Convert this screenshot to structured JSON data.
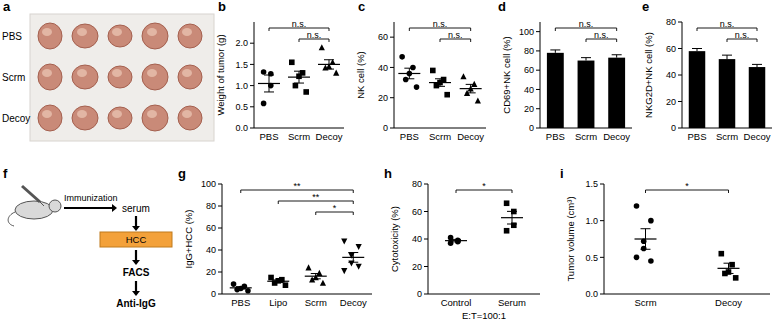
{
  "chart_data": [
    {
      "panel": "a",
      "type": "image",
      "labels": [
        "PBS",
        "Scrm",
        "Decoy"
      ],
      "tumors": [
        5,
        5,
        5
      ]
    },
    {
      "panel": "b",
      "type": "scatter",
      "y_label": "Weight of tumor (g)",
      "color": "#000000",
      "ylim": [
        0,
        2.5
      ],
      "yticks": [
        {
          "value": 0,
          "label": "0.0"
        },
        {
          "value": 0.5,
          "label": "0.5"
        },
        {
          "value": 1,
          "label": "1.0"
        },
        {
          "value": 1.5,
          "label": "1.5"
        },
        {
          "value": 2,
          "label": "2.0"
        }
      ],
      "series": [
        {
          "name": "PBS",
          "marker": "circle",
          "values": [
            1.32,
            1.28,
            1.0,
            0.58
          ],
          "mean": 1.05,
          "error": 0.2
        },
        {
          "name": "Scrm",
          "marker": "square",
          "values": [
            1.55,
            1.3,
            1.22,
            1.0,
            0.85
          ],
          "mean": 1.2,
          "error": 0.14
        },
        {
          "name": "Decoy",
          "marker": "triangle",
          "values": [
            1.9,
            1.55,
            1.45,
            1.42,
            1.3
          ],
          "mean": 1.5,
          "error": 0.11
        }
      ],
      "annotations": [
        {
          "from": 0,
          "to": 2,
          "text": "n.s."
        },
        {
          "from": 1,
          "to": 2,
          "text": "n.s."
        }
      ]
    },
    {
      "panel": "c",
      "type": "scatter",
      "y_label": "NK cell (%)",
      "color": "#000000",
      "ylim": [
        0,
        70
      ],
      "yticks": [
        0,
        20,
        40,
        60
      ],
      "series": [
        {
          "name": "PBS",
          "marker": "circle",
          "values": [
            47,
            40,
            36,
            32,
            27
          ],
          "mean": 36,
          "error": 3.5
        },
        {
          "name": "Scrm",
          "marker": "square",
          "values": [
            38,
            32,
            30,
            28,
            22
          ],
          "mean": 30,
          "error": 2.5
        },
        {
          "name": "Decoy",
          "marker": "triangle",
          "values": [
            34,
            29,
            26,
            23,
            18
          ],
          "mean": 26,
          "error": 2.8
        }
      ],
      "annotations": [
        {
          "from": 0,
          "to": 2,
          "text": "n.s."
        },
        {
          "from": 1,
          "to": 2,
          "text": "n.s."
        }
      ]
    },
    {
      "panel": "d",
      "type": "bar",
      "y_label": "CD69+NK cell (%)",
      "color": "#000000",
      "ylim": [
        0,
        110
      ],
      "yticks": [
        0,
        20,
        40,
        60,
        80,
        100
      ],
      "categories": [
        "PBS",
        "Scrm",
        "Decoy"
      ],
      "values": [
        78,
        70,
        73
      ],
      "error": [
        3,
        3,
        3
      ],
      "annotations": [
        {
          "from": 0,
          "to": 2,
          "text": "n.s."
        },
        {
          "from": 1,
          "to": 2,
          "text": "n.s."
        }
      ]
    },
    {
      "panel": "e",
      "type": "bar",
      "y_label": "NKG2D+NK cell (%)",
      "color": "#000000",
      "ylim": [
        0,
        80
      ],
      "yticks": [
        0,
        20,
        40,
        60,
        80
      ],
      "categories": [
        "PBS",
        "Scrm",
        "Decoy"
      ],
      "values": [
        58,
        52,
        46
      ],
      "error": [
        2,
        3,
        2
      ],
      "annotations": [
        {
          "from": 0,
          "to": 2,
          "text": "n.s."
        },
        {
          "from": 1,
          "to": 2,
          "text": "n.s."
        }
      ]
    },
    {
      "panel": "f",
      "type": "diagram",
      "labels": {
        "step": "Immunization",
        "sample": "serum",
        "cells": "HCC",
        "assay": "FACS",
        "readout": "Anti-IgG"
      }
    },
    {
      "panel": "g",
      "type": "scatter",
      "y_label": "IgG+HCC (%)",
      "color": "#000000",
      "ylim": [
        0,
        100
      ],
      "yticks": [
        0,
        20,
        40,
        60,
        80,
        100
      ],
      "series": [
        {
          "name": "PBS",
          "marker": "circle",
          "values": [
            9,
            7,
            5,
            4,
            3
          ],
          "mean": 5.6,
          "error": 1.1
        },
        {
          "name": "Lipo",
          "marker": "square",
          "values": [
            15,
            13,
            12,
            10,
            8
          ],
          "mean": 11.6,
          "error": 1.2
        },
        {
          "name": "Scrm",
          "marker": "triangle",
          "values": [
            24,
            19,
            15,
            13,
            10
          ],
          "mean": 16.2,
          "error": 2.4
        },
        {
          "name": "Decoy",
          "marker": "triangle-down",
          "values": [
            48,
            43,
            35,
            28,
            25,
            21
          ],
          "mean": 33.3,
          "error": 4.4
        }
      ],
      "annotations": [
        {
          "from": 0,
          "to": 3,
          "text": "**"
        },
        {
          "from": 1,
          "to": 3,
          "text": "**"
        },
        {
          "from": 2,
          "to": 3,
          "text": "*"
        }
      ]
    },
    {
      "panel": "h",
      "type": "scatter",
      "y_label": "Cytotoxicity (%)",
      "x_label": "E:T=100:1",
      "color": "#000000",
      "ylim": [
        0,
        80
      ],
      "yticks": [
        0,
        20,
        40,
        60,
        80
      ],
      "series": [
        {
          "name": "Control",
          "marker": "circle",
          "values": [
            41,
            39,
            38,
            37
          ],
          "mean": 38.8,
          "error": 0.9
        },
        {
          "name": "Serum",
          "marker": "square",
          "values": [
            66,
            60,
            50,
            46
          ],
          "mean": 55.5,
          "error": 4.6
        }
      ],
      "annotations": [
        {
          "from": 0,
          "to": 1,
          "text": "*"
        }
      ]
    },
    {
      "panel": "i",
      "type": "scatter",
      "y_label": "Tumor volume (cm³)",
      "color": "#000000",
      "ylim": [
        0,
        1.5
      ],
      "yticks": [
        {
          "value": 0,
          "label": "0.0"
        },
        {
          "value": 0.5,
          "label": "0.5"
        },
        {
          "value": 1,
          "label": "1.0"
        },
        {
          "value": 1.5,
          "label": "1.5"
        }
      ],
      "series": [
        {
          "name": "Scrm",
          "marker": "circle",
          "values": [
            1.2,
            1.0,
            0.72,
            0.62,
            0.45,
            0.5
          ],
          "mean": 0.75,
          "error": 0.14
        },
        {
          "name": "Decoy",
          "marker": "square",
          "values": [
            0.55,
            0.4,
            0.3,
            0.28,
            0.22
          ],
          "mean": 0.35,
          "error": 0.07
        }
      ],
      "annotations": [
        {
          "from": 0,
          "to": 1,
          "text": "*"
        }
      ]
    }
  ]
}
